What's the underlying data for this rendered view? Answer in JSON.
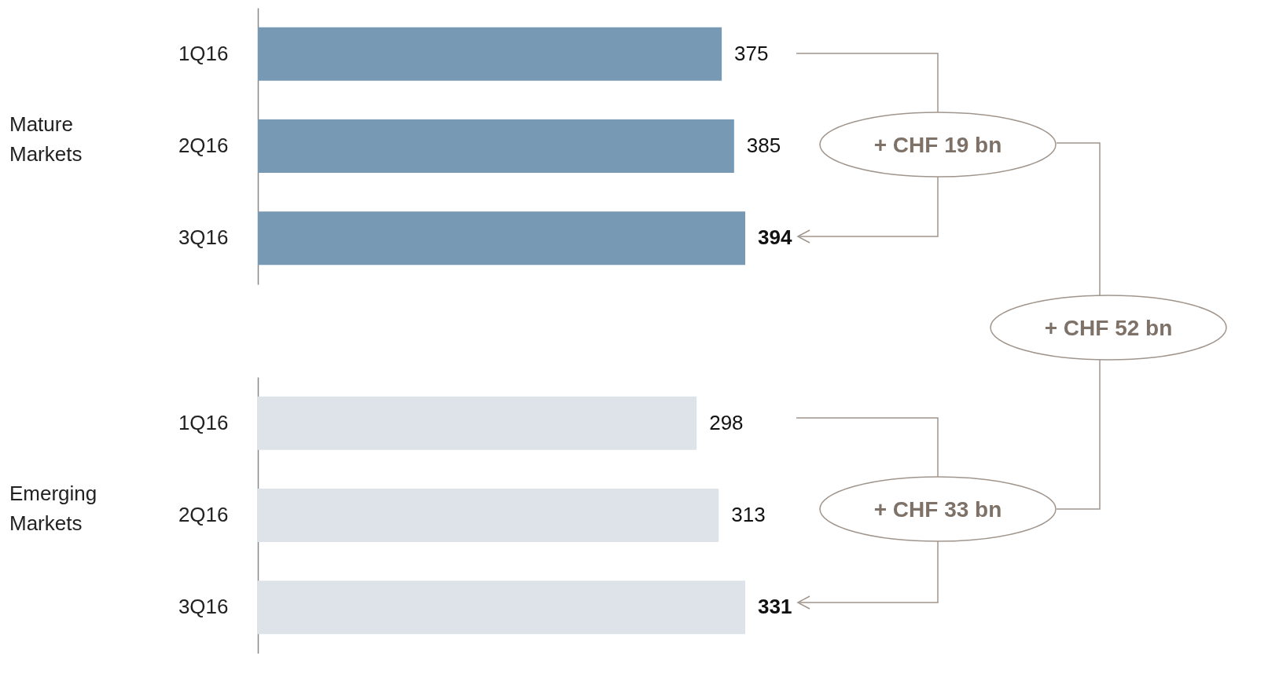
{
  "chart_data": [
    {
      "type": "bar",
      "orientation": "horizontal",
      "ylabel": "Mature Markets",
      "categories": [
        "1Q16",
        "2Q16",
        "3Q16"
      ],
      "values": [
        375,
        385,
        394
      ],
      "color": "#7899b4",
      "data_labels": true,
      "tick_labels": "y",
      "annotations": [
        "+ CHF 19 bn",
        "+ CHF 52 bn"
      ]
    },
    {
      "type": "bar",
      "orientation": "horizontal",
      "ylabel": "Emerging Markets",
      "categories": [
        "1Q16",
        "2Q16",
        "3Q16"
      ],
      "values": [
        298,
        313,
        331
      ],
      "color": "#dde3e9",
      "data_labels": true,
      "tick_labels": "y",
      "annotations": [
        "+ CHF 33 bn"
      ]
    }
  ]
}
